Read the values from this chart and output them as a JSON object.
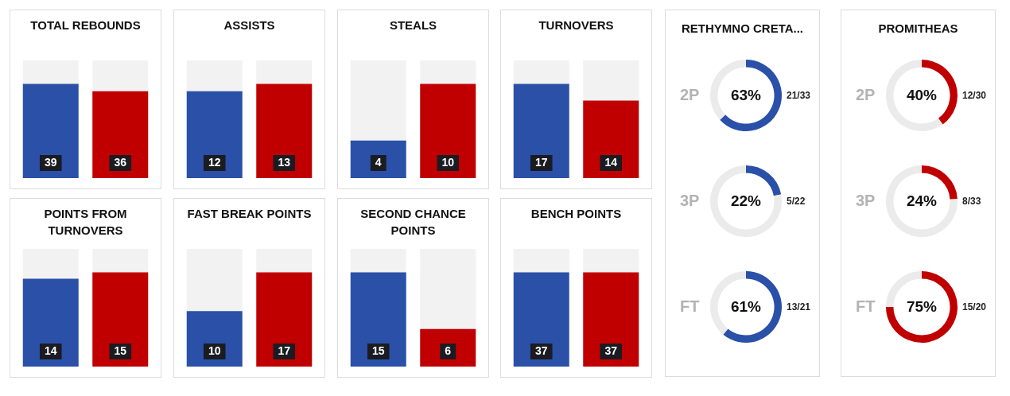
{
  "chart_data": [
    {
      "type": "bar",
      "title": "TOTAL REBOUNDS",
      "categories": [
        null,
        null
      ],
      "values": [
        39,
        36
      ],
      "colors": [
        "#2a50a8",
        "#c00000"
      ],
      "data_labels": true
    },
    {
      "type": "bar",
      "title": "ASSISTS",
      "categories": [
        null,
        null
      ],
      "values": [
        12,
        13
      ],
      "colors": [
        "#2a50a8",
        "#c00000"
      ],
      "data_labels": true
    },
    {
      "type": "bar",
      "title": "STEALS",
      "categories": [
        null,
        null
      ],
      "values": [
        4,
        10
      ],
      "colors": [
        "#2a50a8",
        "#c00000"
      ],
      "data_labels": true
    },
    {
      "type": "bar",
      "title": "TURNOVERS",
      "categories": [
        null,
        null
      ],
      "values": [
        17,
        14
      ],
      "colors": [
        "#2a50a8",
        "#c00000"
      ],
      "data_labels": true
    },
    {
      "type": "bar",
      "title": "POINTS FROM TURNOVERS",
      "categories": [
        null,
        null
      ],
      "values": [
        14,
        15
      ],
      "colors": [
        "#2a50a8",
        "#c00000"
      ],
      "data_labels": true
    },
    {
      "type": "bar",
      "title": "FAST BREAK POINTS",
      "categories": [
        null,
        null
      ],
      "values": [
        10,
        17
      ],
      "colors": [
        "#2a50a8",
        "#c00000"
      ],
      "data_labels": true
    },
    {
      "type": "bar",
      "title": "SECOND CHANCE POINTS",
      "categories": [
        null,
        null
      ],
      "values": [
        15,
        6
      ],
      "colors": [
        "#2a50a8",
        "#c00000"
      ],
      "data_labels": true
    },
    {
      "type": "bar",
      "title": "BENCH POINTS",
      "categories": [
        null,
        null
      ],
      "values": [
        37,
        37
      ],
      "colors": [
        "#2a50a8",
        "#c00000"
      ],
      "data_labels": true
    },
    {
      "type": "donut",
      "title": "RETHYMNO CRETA...",
      "categories": [
        null,
        null
      ],
      "values": [
        63,
        37
      ],
      "colors": [
        "#2a50a8",
        "#ebebeb"
      ],
      "value_labels": [
        "63%",
        null
      ],
      "annotations": [
        "2P",
        "21/33"
      ]
    },
    {
      "type": "donut",
      "categories": [
        null,
        null
      ],
      "values": [
        22,
        78
      ],
      "colors": [
        "#2a50a8",
        "#ebebeb"
      ],
      "value_labels": [
        "22%",
        null
      ],
      "annotations": [
        "3P",
        "5/22"
      ]
    },
    {
      "type": "donut",
      "categories": [
        null,
        null
      ],
      "values": [
        61,
        39
      ],
      "colors": [
        "#2a50a8",
        "#ebebeb"
      ],
      "value_labels": [
        "61%",
        null
      ],
      "annotations": [
        "FT",
        "13/21"
      ]
    },
    {
      "type": "donut",
      "title": "PROMITHEAS",
      "categories": [
        null,
        null
      ],
      "values": [
        40,
        60
      ],
      "colors": [
        "#c00000",
        "#ebebeb"
      ],
      "value_labels": [
        "40%",
        null
      ],
      "annotations": [
        "2P",
        "12/30"
      ]
    },
    {
      "type": "donut",
      "categories": [
        null,
        null
      ],
      "values": [
        24,
        76
      ],
      "colors": [
        "#c00000",
        "#ebebeb"
      ],
      "value_labels": [
        "24%",
        null
      ],
      "annotations": [
        "3P",
        "8/33"
      ]
    },
    {
      "type": "donut",
      "categories": [
        null,
        null
      ],
      "values": [
        75,
        25
      ],
      "colors": [
        "#c00000",
        "#ebebeb"
      ],
      "value_labels": [
        "75%",
        null
      ],
      "annotations": [
        "FT",
        "15/20"
      ]
    }
  ]
}
